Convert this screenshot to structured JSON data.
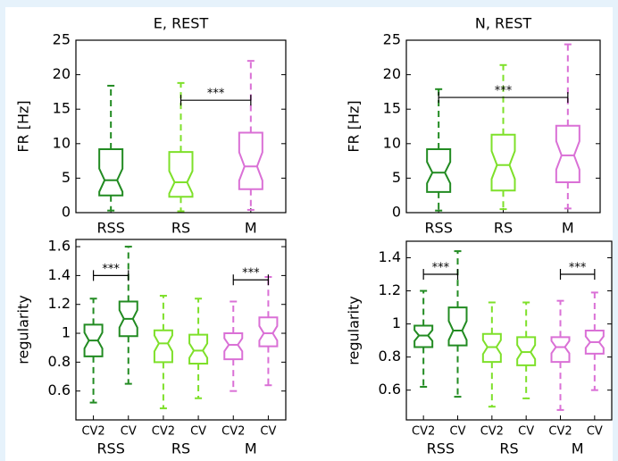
{
  "chart_data": [
    {
      "type": "box",
      "title": "E, REST",
      "ylabel": "FR [Hz]",
      "ylim": [
        0,
        25
      ],
      "yticks": [
        0,
        5,
        10,
        15,
        20,
        25
      ],
      "categories": [
        "RSS",
        "RS",
        "M"
      ],
      "boxes": [
        {
          "color": "#228b22",
          "min": 0.3,
          "q1": 2.5,
          "median": 4.7,
          "q3": 9.2,
          "max": 18.4
        },
        {
          "color": "#7ee02a",
          "min": 0.2,
          "q1": 2.3,
          "median": 4.4,
          "q3": 8.8,
          "max": 18.8
        },
        {
          "color": "#da70d6",
          "min": 0.4,
          "q1": 3.4,
          "median": 6.7,
          "q3": 11.6,
          "max": 22
        }
      ],
      "annotations": [
        {
          "from": 1,
          "to": 2,
          "y": 16.3,
          "text": "***"
        }
      ]
    },
    {
      "type": "box",
      "title": "N, REST",
      "ylabel": "FR [Hz]",
      "ylim": [
        0,
        25
      ],
      "yticks": [
        0,
        5,
        10,
        15,
        20,
        25
      ],
      "categories": [
        "RSS",
        "RS",
        "M"
      ],
      "boxes": [
        {
          "color": "#228b22",
          "min": 0.3,
          "q1": 3,
          "median": 5.8,
          "q3": 9.2,
          "max": 17.9
        },
        {
          "color": "#7ee02a",
          "min": 0.5,
          "q1": 3.2,
          "median": 6.9,
          "q3": 11.3,
          "max": 21.4
        },
        {
          "color": "#da70d6",
          "min": 0.6,
          "q1": 4.4,
          "median": 8.3,
          "q3": 12.6,
          "max": 24.4
        }
      ],
      "annotations": [
        {
          "from": 0,
          "to": 2,
          "y": 16.7,
          "text": "***"
        }
      ]
    },
    {
      "type": "box",
      "ylabel": "regularity",
      "ylim": [
        0.4,
        1.65
      ],
      "yticks": [
        0.6,
        0.8,
        1.0,
        1.2,
        1.4,
        1.6
      ],
      "categories": [
        "CV2",
        "CV",
        "CV2",
        "CV",
        "CV2",
        "CV"
      ],
      "groups": [
        "RSS",
        "RS",
        "M"
      ],
      "boxes": [
        {
          "color": "#228b22",
          "min": 0.52,
          "q1": 0.84,
          "median": 0.95,
          "q3": 1.06,
          "max": 1.24
        },
        {
          "color": "#228b22",
          "min": 0.65,
          "q1": 0.98,
          "median": 1.1,
          "q3": 1.22,
          "max": 1.6
        },
        {
          "color": "#7ee02a",
          "min": 0.48,
          "q1": 0.8,
          "median": 0.93,
          "q3": 1.02,
          "max": 1.26
        },
        {
          "color": "#7ee02a",
          "min": 0.55,
          "q1": 0.79,
          "median": 0.88,
          "q3": 0.99,
          "max": 1.24
        },
        {
          "color": "#da70d6",
          "min": 0.6,
          "q1": 0.82,
          "median": 0.92,
          "q3": 1.0,
          "max": 1.22
        },
        {
          "color": "#da70d6",
          "min": 0.64,
          "q1": 0.91,
          "median": 1.0,
          "q3": 1.11,
          "max": 1.39
        }
      ],
      "annotations": [
        {
          "from": 0,
          "to": 1,
          "y": 1.4,
          "text": "***"
        },
        {
          "from": 4,
          "to": 5,
          "y": 1.37,
          "text": "***"
        }
      ]
    },
    {
      "type": "box",
      "ylabel": "regularity",
      "ylim": [
        0.42,
        1.5
      ],
      "yticks": [
        0.6,
        0.8,
        1.0,
        1.2,
        1.4
      ],
      "categories": [
        "CV2",
        "CV",
        "CV2",
        "CV",
        "CV2",
        "CV"
      ],
      "groups": [
        "RSS",
        "RS",
        "M"
      ],
      "boxes": [
        {
          "color": "#228b22",
          "min": 0.62,
          "q1": 0.86,
          "median": 0.93,
          "q3": 0.99,
          "max": 1.2
        },
        {
          "color": "#228b22",
          "min": 0.56,
          "q1": 0.87,
          "median": 0.96,
          "q3": 1.1,
          "max": 1.44
        },
        {
          "color": "#7ee02a",
          "min": 0.5,
          "q1": 0.77,
          "median": 0.86,
          "q3": 0.94,
          "max": 1.13
        },
        {
          "color": "#7ee02a",
          "min": 0.55,
          "q1": 0.75,
          "median": 0.83,
          "q3": 0.92,
          "max": 1.13
        },
        {
          "color": "#da70d6",
          "min": 0.48,
          "q1": 0.77,
          "median": 0.86,
          "q3": 0.92,
          "max": 1.14
        },
        {
          "color": "#da70d6",
          "min": 0.6,
          "q1": 0.82,
          "median": 0.89,
          "q3": 0.96,
          "max": 1.19
        }
      ],
      "annotations": [
        {
          "from": 0,
          "to": 1,
          "y": 1.3,
          "text": "***"
        },
        {
          "from": 4,
          "to": 5,
          "y": 1.3,
          "text": "***"
        }
      ]
    }
  ]
}
